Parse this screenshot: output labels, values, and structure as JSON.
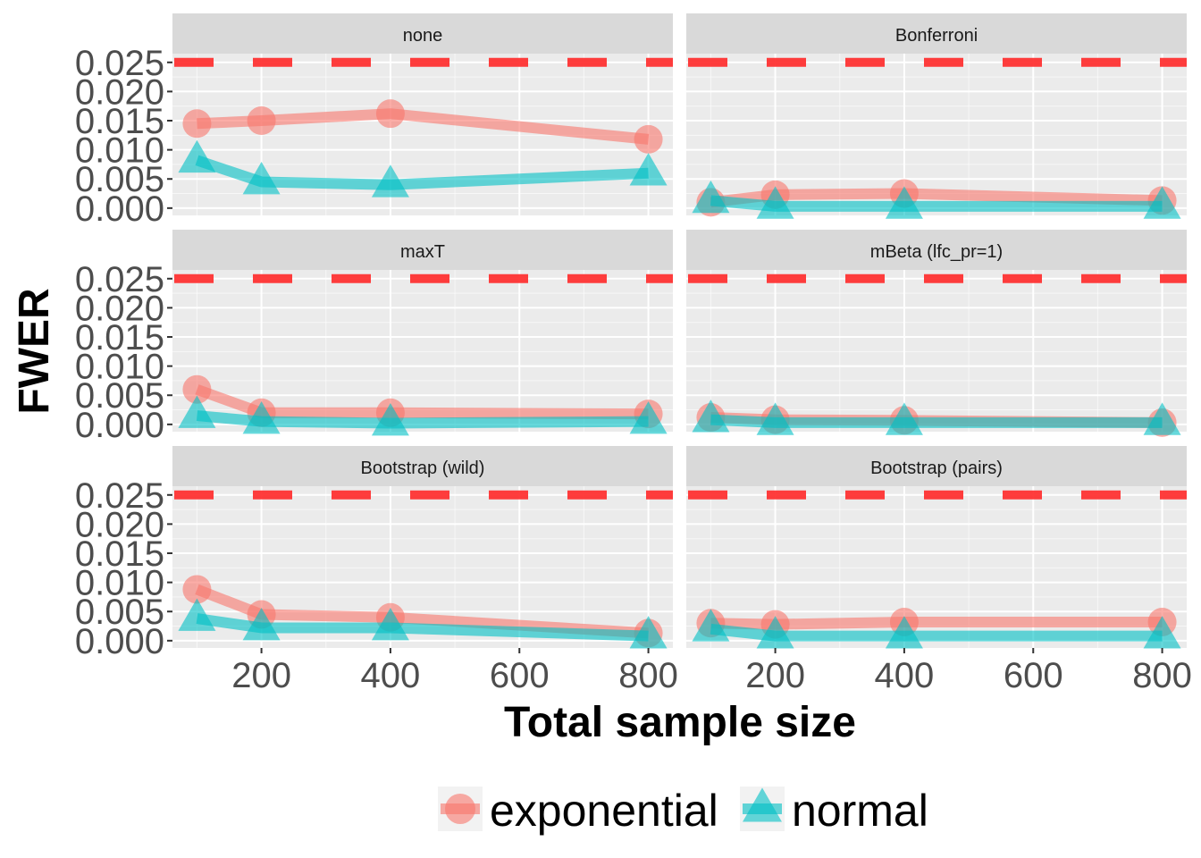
{
  "chart_data": {
    "type": "line",
    "xlabel": "Total sample size",
    "ylabel": "FWER",
    "xlim": [
      62,
      838
    ],
    "ylim": [
      -0.00125,
      0.0265
    ],
    "x_ticks": [
      200,
      400,
      600,
      800
    ],
    "y_ticks": [
      0.0,
      0.005,
      0.01,
      0.015,
      0.02,
      0.025
    ],
    "y_tick_labels": [
      "0.000",
      "0.005",
      "0.010",
      "0.015",
      "0.020",
      "0.025"
    ],
    "reference_line": {
      "y": 0.025,
      "color": "#ff3333",
      "style": "dashed"
    },
    "grid": true,
    "legend_position": "bottom",
    "colors": {
      "exponential": "#f8766d",
      "normal": "#00bfc4"
    },
    "x": [
      100,
      200,
      400,
      800
    ],
    "panels": [
      {
        "title": "none",
        "series": [
          {
            "name": "exponential",
            "values": [
              0.0145,
              0.015,
              0.0162,
              0.0118
            ]
          },
          {
            "name": "normal",
            "values": [
              0.0082,
              0.0045,
              0.004,
              0.006
            ]
          }
        ]
      },
      {
        "title": "Bonferroni",
        "series": [
          {
            "name": "exponential",
            "values": [
              0.001,
              0.0023,
              0.0025,
              0.0013
            ]
          },
          {
            "name": "normal",
            "values": [
              0.0013,
              0.0003,
              0.0003,
              0.0003
            ]
          }
        ]
      },
      {
        "title": "maxT",
        "series": [
          {
            "name": "exponential",
            "values": [
              0.006,
              0.002,
              0.002,
              0.0018
            ]
          },
          {
            "name": "normal",
            "values": [
              0.0015,
              0.0005,
              0.0002,
              0.0005
            ]
          }
        ]
      },
      {
        "title": "mBeta (lfc_pr=1)",
        "series": [
          {
            "name": "exponential",
            "values": [
              0.0012,
              0.0008,
              0.0007,
              0.0003
            ]
          },
          {
            "name": "normal",
            "values": [
              0.0008,
              0.0003,
              0.0003,
              0.0003
            ]
          }
        ]
      },
      {
        "title": "Bootstrap (wild)",
        "series": [
          {
            "name": "exponential",
            "values": [
              0.0088,
              0.0045,
              0.004,
              0.0013
            ]
          },
          {
            "name": "normal",
            "values": [
              0.0038,
              0.0022,
              0.0022,
              0.0008
            ]
          }
        ]
      },
      {
        "title": "Bootstrap (pairs)",
        "series": [
          {
            "name": "exponential",
            "values": [
              0.003,
              0.0028,
              0.0032,
              0.0032
            ]
          },
          {
            "name": "normal",
            "values": [
              0.002,
              0.0008,
              0.0008,
              0.0008
            ]
          }
        ]
      }
    ],
    "legend": [
      "exponential",
      "normal"
    ]
  }
}
